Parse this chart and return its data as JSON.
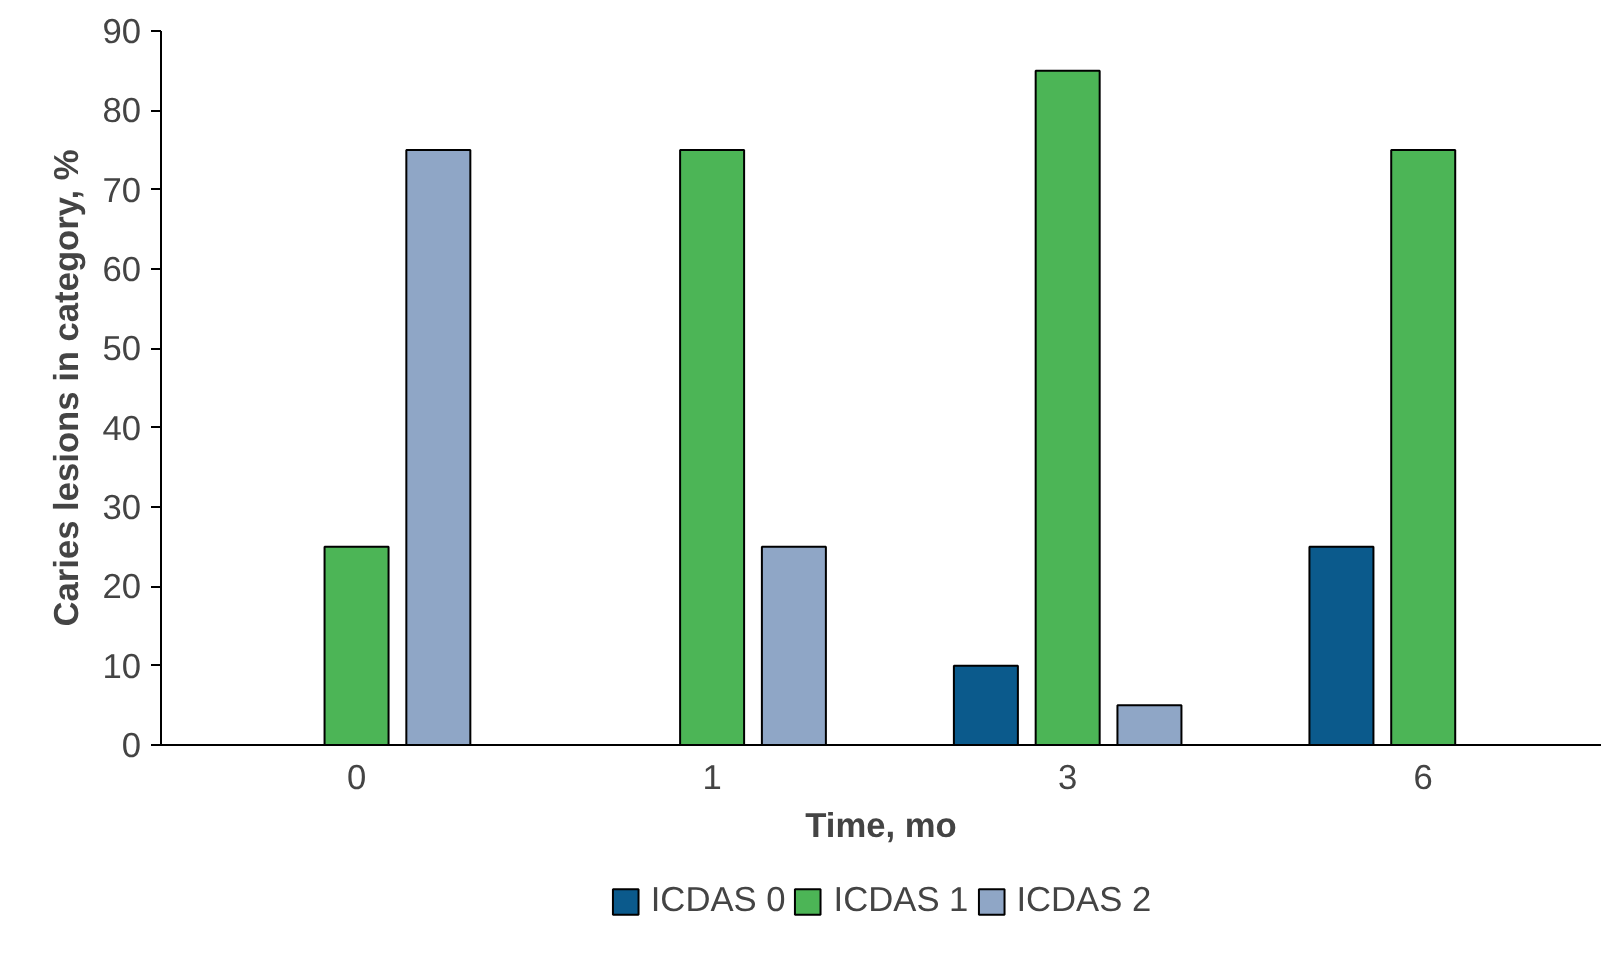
{
  "chart_data": {
    "type": "bar",
    "xlabel": "Time, mo",
    "ylabel": "Caries lesions in category, %",
    "categories": [
      "0",
      "1",
      "3",
      "6"
    ],
    "series": [
      {
        "name": "ICDAS 0",
        "color": "#0b5a8c",
        "values": [
          0,
          0,
          10,
          25
        ]
      },
      {
        "name": "ICDAS 1",
        "color": "#4cb556",
        "values": [
          25,
          75,
          85,
          75
        ]
      },
      {
        "name": "ICDAS 2",
        "color": "#8fa6c6",
        "values": [
          75,
          25,
          5,
          0
        ]
      }
    ],
    "ylim": [
      0,
      90
    ],
    "yticks": [
      0,
      10,
      20,
      30,
      40,
      50,
      60,
      70,
      80,
      90
    ],
    "grid": false,
    "legend": "bottom"
  }
}
